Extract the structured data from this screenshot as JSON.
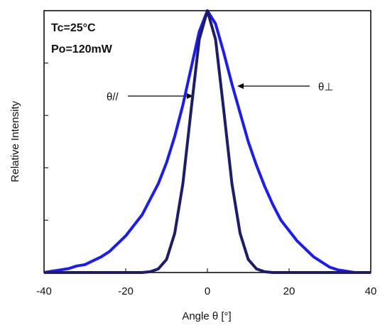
{
  "chart_data": {
    "type": "line",
    "xlabel": "Angle  θ [°]",
    "ylabel": "Relative Intensity",
    "annotations": [
      "Tc=25°C",
      "Po=120mW"
    ],
    "x": [
      -40,
      -38,
      -36,
      -34,
      -32,
      -30,
      -28,
      -26,
      -24,
      -22,
      -20,
      -18,
      -16,
      -14,
      -12,
      -10,
      -8,
      -6,
      -4,
      -2,
      0,
      2,
      4,
      6,
      8,
      10,
      12,
      14,
      16,
      18,
      20,
      22,
      24,
      26,
      28,
      30,
      32,
      34,
      36,
      38,
      40
    ],
    "series": [
      {
        "name": "θ//",
        "color": "#1c1c6e",
        "values": [
          0,
          0,
          0,
          0,
          0,
          0,
          0,
          0,
          0,
          0,
          0,
          0,
          0,
          0.003,
          0.014,
          0.05,
          0.15,
          0.34,
          0.62,
          0.89,
          1,
          0.89,
          0.62,
          0.34,
          0.15,
          0.05,
          0.014,
          0.003,
          0,
          0,
          0,
          0,
          0,
          0,
          0,
          0,
          0,
          0,
          0,
          0,
          0
        ]
      },
      {
        "name": "θ⊥",
        "color": "#1a1aff",
        "values": [
          0,
          0.005,
          0.01,
          0.015,
          0.025,
          0.03,
          0.045,
          0.06,
          0.08,
          0.11,
          0.14,
          0.18,
          0.22,
          0.28,
          0.34,
          0.42,
          0.52,
          0.64,
          0.78,
          0.92,
          1,
          0.95,
          0.84,
          0.72,
          0.61,
          0.5,
          0.41,
          0.33,
          0.26,
          0.2,
          0.16,
          0.12,
          0.09,
          0.06,
          0.04,
          0.02,
          0.01,
          0.005,
          0,
          0,
          0
        ]
      }
    ],
    "xlim": [
      -40,
      40
    ],
    "xticks": [
      -40,
      -20,
      0,
      20,
      40
    ],
    "ylim": [
      0,
      1
    ],
    "yticks": [
      0,
      0.2,
      0.4,
      0.6,
      0.8,
      1
    ]
  }
}
